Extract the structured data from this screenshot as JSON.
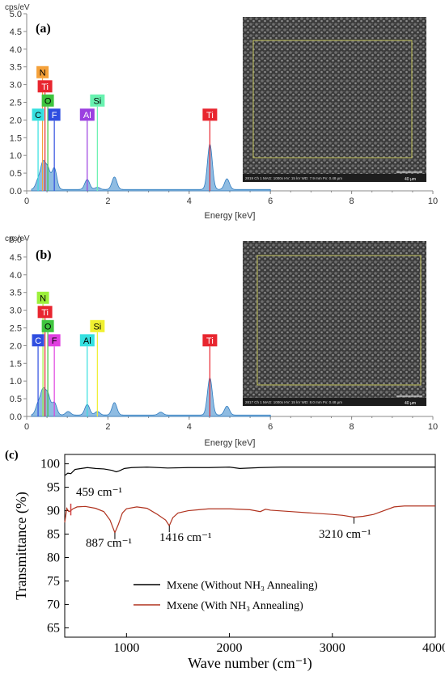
{
  "panels": [
    {
      "label": "(a)",
      "y_unit": "cps/eV",
      "x_label": "Energy [keV]",
      "sem": {
        "caption_left": "2819  Ch 1  MAG: 1000x  HV: 15 kV  WD: 7.9 mm  Px: 0.48 µm",
        "scale_label": "40 µm"
      },
      "elements": [
        {
          "symbol": "N",
          "bg": "#f5a13a",
          "fg": "#000000"
        },
        {
          "symbol": "Ti",
          "bg": "#e8262f",
          "fg": "#ffffff"
        },
        {
          "symbol": "O",
          "bg": "#3ec43e",
          "fg": "#000000"
        },
        {
          "symbol": "C",
          "bg": "#35e0e0",
          "fg": "#000000"
        },
        {
          "symbol": "F",
          "bg": "#2f4ee0",
          "fg": "#ffffff"
        },
        {
          "symbol": "Al",
          "bg": "#9b3fe0",
          "fg": "#ffffff"
        },
        {
          "symbol": "Si",
          "bg": "#68f2b0",
          "fg": "#000000"
        },
        {
          "symbol": "Ti",
          "bg": "#e8262f",
          "fg": "#ffffff"
        }
      ]
    },
    {
      "label": "(b)",
      "y_unit": "cps/eV",
      "x_label": "Energy [keV]",
      "sem": {
        "caption_left": "2817  Ch 1  MAG: 1000x  HV: 15 kV  WD: 8.0 mm  Px: 0.48 µm",
        "scale_label": "40 µm"
      },
      "elements": [
        {
          "symbol": "N",
          "bg": "#9cf03a",
          "fg": "#000000"
        },
        {
          "symbol": "Ti",
          "bg": "#e8262f",
          "fg": "#ffffff"
        },
        {
          "symbol": "O",
          "bg": "#3ec43e",
          "fg": "#000000"
        },
        {
          "symbol": "C",
          "bg": "#2f4ee0",
          "fg": "#ffffff"
        },
        {
          "symbol": "F",
          "bg": "#e040e0",
          "fg": "#000000"
        },
        {
          "symbol": "Al",
          "bg": "#35e0e0",
          "fg": "#000000"
        },
        {
          "symbol": "Si",
          "bg": "#f0f030",
          "fg": "#000000"
        },
        {
          "symbol": "Ti",
          "bg": "#e8262f",
          "fg": "#ffffff"
        }
      ]
    }
  ],
  "ir": {
    "label": "(c)",
    "annotations": [
      "459 cm⁻¹",
      "887 cm⁻¹",
      "1416 cm⁻¹",
      "3210 cm⁻¹"
    ],
    "legend": [
      "Mxene (Without NH₃ Annealing)",
      "Mxene (With NH₃ Annealing)"
    ]
  },
  "chart_data": [
    {
      "type": "area",
      "title": "(a)",
      "xlabel": "Energy [keV]",
      "ylabel": "cps/eV",
      "xlim": [
        0,
        10
      ],
      "ylim": [
        0,
        5.0
      ],
      "x_ticks": [
        0,
        2,
        4,
        6,
        8,
        10
      ],
      "y_ticks": [
        0.0,
        0.5,
        1.0,
        1.5,
        2.0,
        2.5,
        3.0,
        3.5,
        4.0,
        4.5,
        5.0
      ],
      "peaks": [
        {
          "x": 0.28,
          "y": 0.25
        },
        {
          "x": 0.4,
          "y": 0.7
        },
        {
          "x": 0.52,
          "y": 0.55
        },
        {
          "x": 0.68,
          "y": 0.6
        },
        {
          "x": 1.49,
          "y": 0.28
        },
        {
          "x": 1.74,
          "y": 0.06
        },
        {
          "x": 2.16,
          "y": 0.35
        },
        {
          "x": 4.51,
          "y": 1.28
        },
        {
          "x": 4.93,
          "y": 0.3
        }
      ],
      "element_markers": [
        {
          "symbol": "N",
          "x": 0.39,
          "y": 3.35
        },
        {
          "symbol": "Ti",
          "x": 0.45,
          "y": 2.95
        },
        {
          "symbol": "O",
          "x": 0.52,
          "y": 2.55
        },
        {
          "symbol": "C",
          "x": 0.28,
          "y": 2.15
        },
        {
          "symbol": "F",
          "x": 0.68,
          "y": 2.15
        },
        {
          "symbol": "Al",
          "x": 1.49,
          "y": 2.15
        },
        {
          "symbol": "Si",
          "x": 1.74,
          "y": 2.55
        },
        {
          "symbol": "Ti",
          "x": 4.51,
          "y": 2.15
        }
      ]
    },
    {
      "type": "area",
      "title": "(b)",
      "xlabel": "Energy [keV]",
      "ylabel": "cps/eV",
      "xlim": [
        0,
        10
      ],
      "ylim": [
        0,
        5.0
      ],
      "x_ticks": [
        0,
        2,
        4,
        6,
        8,
        10
      ],
      "y_ticks": [
        0.0,
        0.5,
        1.0,
        1.5,
        2.0,
        2.5,
        3.0,
        3.5,
        4.0,
        4.5,
        5.0
      ],
      "peaks": [
        {
          "x": 0.28,
          "y": 0.3
        },
        {
          "x": 0.4,
          "y": 0.65
        },
        {
          "x": 0.52,
          "y": 0.55
        },
        {
          "x": 0.68,
          "y": 0.35
        },
        {
          "x": 1.02,
          "y": 0.1
        },
        {
          "x": 1.49,
          "y": 0.3
        },
        {
          "x": 1.74,
          "y": 0.1
        },
        {
          "x": 2.16,
          "y": 0.35
        },
        {
          "x": 3.3,
          "y": 0.08
        },
        {
          "x": 4.51,
          "y": 1.05
        },
        {
          "x": 4.93,
          "y": 0.25
        }
      ],
      "element_markers": [
        {
          "symbol": "N",
          "x": 0.4,
          "y": 3.35
        },
        {
          "symbol": "Ti",
          "x": 0.45,
          "y": 2.95
        },
        {
          "symbol": "O",
          "x": 0.52,
          "y": 2.55
        },
        {
          "symbol": "C",
          "x": 0.28,
          "y": 2.15
        },
        {
          "symbol": "F",
          "x": 0.68,
          "y": 2.15
        },
        {
          "symbol": "Al",
          "x": 1.49,
          "y": 2.15
        },
        {
          "symbol": "Si",
          "x": 1.74,
          "y": 2.55
        },
        {
          "symbol": "Ti",
          "x": 4.51,
          "y": 2.15
        }
      ]
    },
    {
      "type": "line",
      "title": "(c)",
      "xlabel": "Wave number (cm⁻¹)",
      "ylabel": "Transmittance (%)",
      "xlim": [
        400,
        4000
      ],
      "ylim": [
        63,
        102
      ],
      "x_ticks": [
        1000,
        2000,
        3000,
        4000
      ],
      "y_ticks": [
        65,
        70,
        75,
        80,
        85,
        90,
        95,
        100
      ],
      "series": [
        {
          "name": "Mxene (Without NH₃ Annealing)",
          "color": "#000000",
          "x": [
            400,
            430,
            459,
            500,
            560,
            620,
            700,
            780,
            860,
            900,
            930,
            980,
            1050,
            1200,
            1400,
            1600,
            1800,
            2000,
            2100,
            2300,
            2500,
            2800,
            3000,
            3300,
            3600,
            3800,
            4000
          ],
          "y": [
            97.5,
            98.0,
            97.9,
            98.8,
            99.0,
            99.2,
            99.0,
            98.9,
            98.6,
            98.3,
            98.5,
            99.0,
            99.2,
            99.3,
            99.1,
            99.2,
            99.2,
            99.3,
            99.0,
            99.2,
            99.3,
            99.3,
            99.3,
            99.3,
            99.3,
            99.3,
            99.3
          ]
        },
        {
          "name": "Mxene (With NH₃ Annealing)",
          "color": "#b0321e",
          "x": [
            400,
            420,
            440,
            459,
            480,
            520,
            600,
            700,
            780,
            840,
            887,
            920,
            960,
            1000,
            1100,
            1200,
            1300,
            1380,
            1416,
            1450,
            1500,
            1600,
            1700,
            1800,
            2000,
            2200,
            2300,
            2350,
            2400,
            2600,
            2800,
            3000,
            3100,
            3210,
            3300,
            3400,
            3500,
            3600,
            3700,
            3800,
            4000
          ],
          "y": [
            87.5,
            90.5,
            89.8,
            90.0,
            90.4,
            90.8,
            90.9,
            90.5,
            89.8,
            88.0,
            85.3,
            87.0,
            89.5,
            90.4,
            90.8,
            90.5,
            89.2,
            88.0,
            86.8,
            88.5,
            89.5,
            90.0,
            90.2,
            90.4,
            90.4,
            90.2,
            89.8,
            90.3,
            90.1,
            89.8,
            89.5,
            89.2,
            89.0,
            88.6,
            88.8,
            89.2,
            90.0,
            90.8,
            91.0,
            91.0,
            91.0
          ]
        }
      ],
      "annotations": [
        {
          "text": "459 cm⁻¹",
          "x": 459
        },
        {
          "text": "887 cm⁻¹",
          "x": 887
        },
        {
          "text": "1416 cm⁻¹",
          "x": 1416
        },
        {
          "text": "3210 cm⁻¹",
          "x": 3210
        }
      ],
      "legend_position": "bottom-left"
    }
  ]
}
